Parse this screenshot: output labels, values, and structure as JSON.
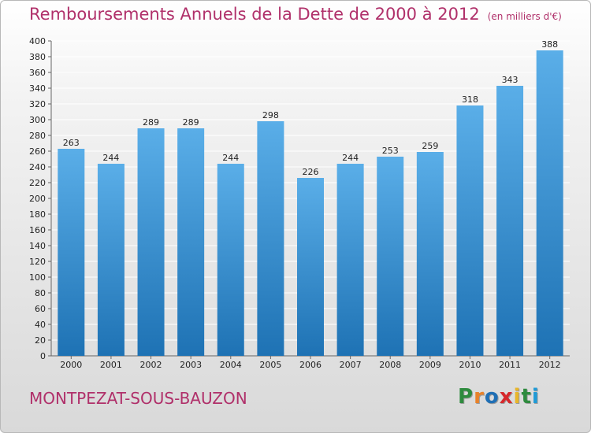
{
  "header": {
    "title": "Remboursements Annuels de la Dette de 2000 à 2012",
    "unit": "(en milliers d'€)"
  },
  "footer": {
    "commune": "MONTPEZAT-SOUS-BAUZON",
    "logo_letters": [
      "P",
      "r",
      "o",
      "x",
      "i",
      "t",
      "i"
    ],
    "logo_colors": [
      "#2e8b3e",
      "#e8822a",
      "#1f6fb5",
      "#d6282b",
      "#e8b62a",
      "#2e8b3e",
      "#1f9ad6"
    ]
  },
  "colors": {
    "title": "#b0306a",
    "bar_top": "#5aaee8",
    "bar_bottom": "#1e72b4",
    "grid": "#ffffff",
    "axis_text": "#222222"
  },
  "chart_data": {
    "type": "bar",
    "title": "Remboursements Annuels de la Dette de 2000 à 2012",
    "categories": [
      "2000",
      "2001",
      "2002",
      "2003",
      "2004",
      "2005",
      "2006",
      "2007",
      "2008",
      "2009",
      "2010",
      "2011",
      "2012"
    ],
    "values": [
      263,
      244,
      289,
      289,
      244,
      298,
      226,
      244,
      253,
      259,
      318,
      343,
      388
    ],
    "ylim": [
      0,
      400
    ],
    "ytick_step": 20,
    "xlabel": "",
    "ylabel": "",
    "grid": true,
    "show_value_labels": true
  }
}
